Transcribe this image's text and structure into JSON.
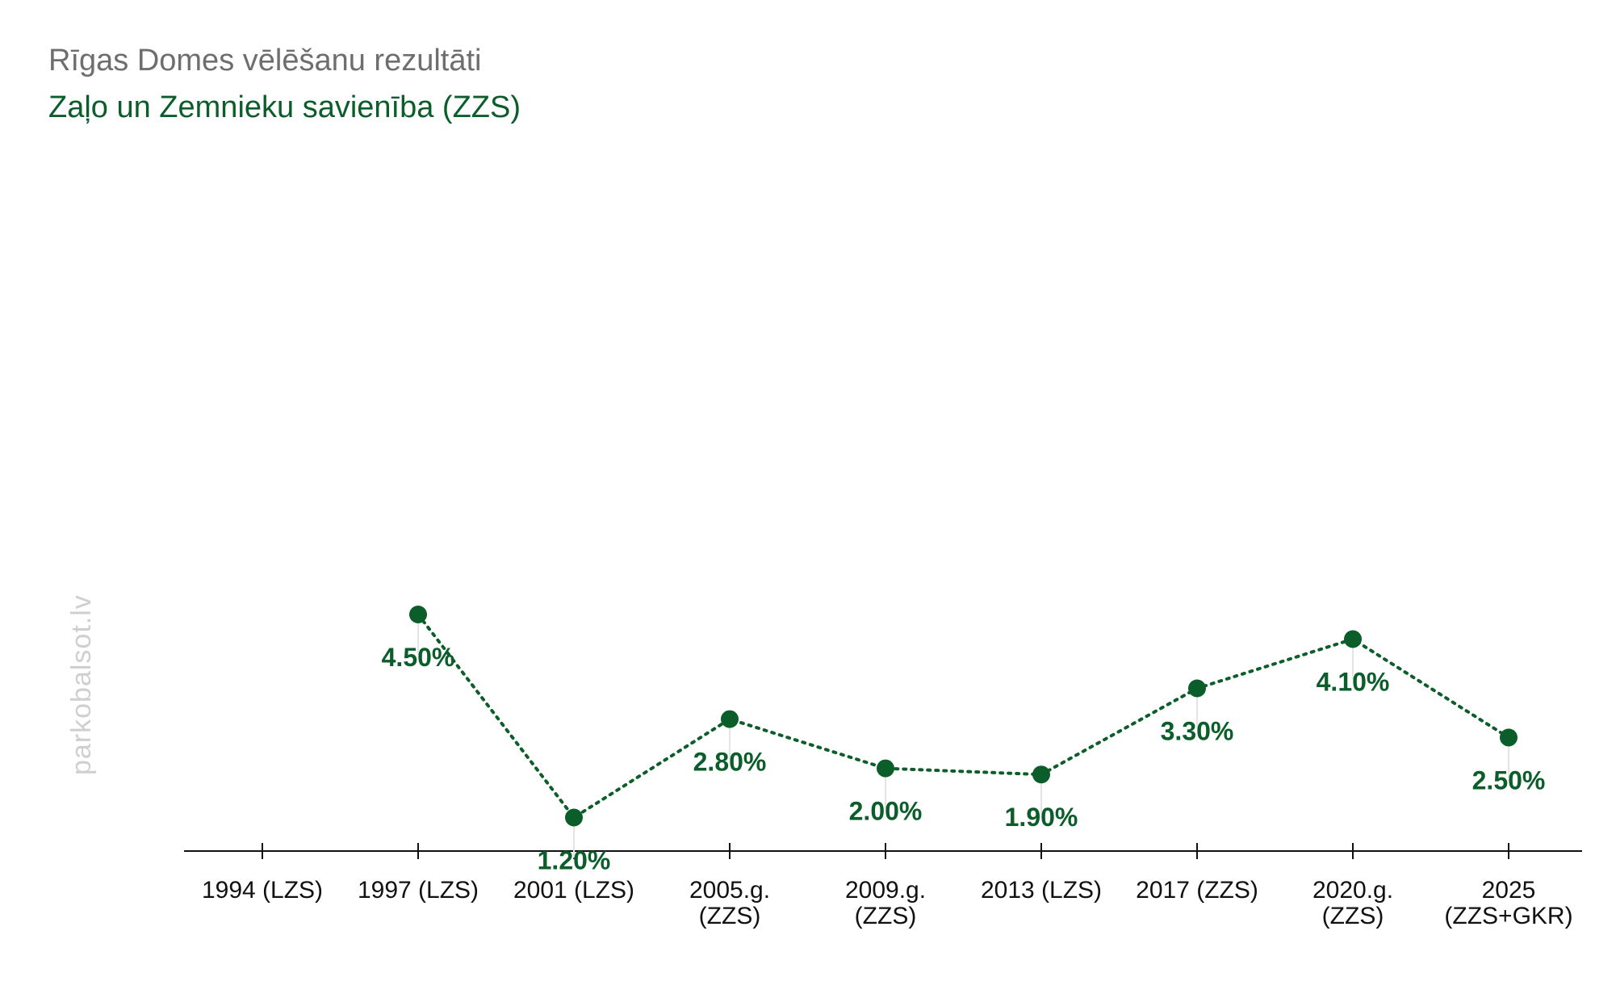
{
  "header": {
    "title": "Rīgas Domes vēlēšanu rezultāti",
    "subtitle": "Zaļo un Zemnieku savienība (ZZS)"
  },
  "watermark": "parkobalsot.lv",
  "colors": {
    "series": "#0b5e2a",
    "title": "#6e6e6e",
    "axis": "#111111",
    "watermark": "#cfcfcf"
  },
  "chart_data": {
    "type": "line",
    "title": "Rīgas Domes vēlēšanu rezultāti",
    "subtitle": "Zaļo un Zemnieku savienība (ZZS)",
    "xlabel": "",
    "ylabel": "",
    "categories": [
      [
        "1994 (LZS)"
      ],
      [
        "1997 (LZS)"
      ],
      [
        "2001 (LZS)"
      ],
      [
        "2005.g.",
        "(ZZS)"
      ],
      [
        "2009.g.",
        "(ZZS)"
      ],
      [
        "2013 (LZS)"
      ],
      [
        "2017 (ZZS)"
      ],
      [
        "2020.g.",
        "(ZZS)"
      ],
      [
        "2025",
        "(ZZS+GKR)"
      ]
    ],
    "series": [
      {
        "values": [
          null,
          4.5,
          1.2,
          2.8,
          2.0,
          1.9,
          3.3,
          4.1,
          2.5
        ],
        "labels": [
          "",
          "4.50%",
          "1.20%",
          "2.80%",
          "2.00%",
          "1.90%",
          "3.30%",
          "4.10%",
          "2.50%"
        ]
      }
    ],
    "ylim": [
      0,
      4.5
    ],
    "grid": false,
    "line_style": "dotted",
    "markers": "circle"
  }
}
